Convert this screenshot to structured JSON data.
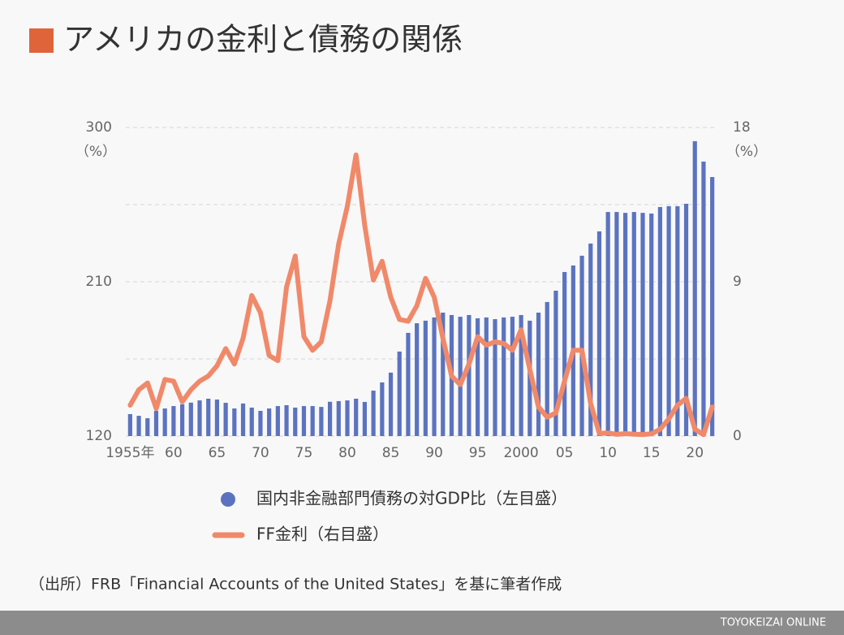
{
  "title": "アメリカの金利と債務の関係",
  "source": "（出所）FRB「Financial Accounts of the United States」を基に筆者作成",
  "footer": "TOYOKEIZAI ONLINE",
  "chart_data": {
    "type": "combo",
    "ylabel": "（%）",
    "y2label": "（%）",
    "x": [
      1955,
      1956,
      1957,
      1958,
      1959,
      1960,
      1961,
      1962,
      1963,
      1964,
      1965,
      1966,
      1967,
      1968,
      1969,
      1970,
      1971,
      1972,
      1973,
      1974,
      1975,
      1976,
      1977,
      1978,
      1979,
      1980,
      1981,
      1982,
      1983,
      1984,
      1985,
      1986,
      1987,
      1988,
      1989,
      1990,
      1991,
      1992,
      1993,
      1994,
      1995,
      1996,
      1997,
      1998,
      1999,
      2000,
      2001,
      2002,
      2003,
      2004,
      2005,
      2006,
      2007,
      2008,
      2009,
      2010,
      2011,
      2012,
      2013,
      2014,
      2015,
      2016,
      2017,
      2018,
      2019,
      2020,
      2021,
      2022
    ],
    "xlim": [
      1954.5,
      2022.5
    ],
    "xticks": [
      {
        "value": 1955,
        "label": "1955年"
      },
      {
        "value": 1960,
        "label": "60"
      },
      {
        "value": 1965,
        "label": "65"
      },
      {
        "value": 1970,
        "label": "70"
      },
      {
        "value": 1975,
        "label": "75"
      },
      {
        "value": 1980,
        "label": "80"
      },
      {
        "value": 1985,
        "label": "85"
      },
      {
        "value": 1990,
        "label": "90"
      },
      {
        "value": 1995,
        "label": "95"
      },
      {
        "value": 2000,
        "label": "2000"
      },
      {
        "value": 2005,
        "label": "05"
      },
      {
        "value": 2010,
        "label": "10"
      },
      {
        "value": 2015,
        "label": "15"
      },
      {
        "value": 2020,
        "label": "20"
      }
    ],
    "ylim": [
      120,
      300
    ],
    "yticks": [
      120,
      210,
      300
    ],
    "y2lim": [
      0,
      18
    ],
    "y2ticks": [
      0,
      9,
      18
    ],
    "grid": true,
    "series": [
      {
        "name": "国内非金融部門債務の対GDP比（左目盛）",
        "type": "bar",
        "color": "#5b73bf",
        "values": [
          132.8,
          131.8,
          130.4,
          134.7,
          136.1,
          137.5,
          138.5,
          139.5,
          140.8,
          141.8,
          141.3,
          139.4,
          136.1,
          139,
          136.6,
          134.7,
          136.1,
          137.5,
          138,
          136.6,
          137.5,
          137.5,
          137,
          140,
          140.4,
          140.8,
          141.8,
          139.9,
          146.5,
          151.3,
          157,
          169.3,
          180.2,
          185.8,
          187.3,
          189.2,
          192,
          190.6,
          189.6,
          190.6,
          188.7,
          189.2,
          188.2,
          189.2,
          189.6,
          190.6,
          187.3,
          192,
          198.2,
          204.8,
          215.7,
          219.5,
          225.2,
          232.3,
          239.4,
          250.7,
          250.7,
          250.2,
          250.7,
          250.2,
          249.8,
          253.6,
          254.1,
          254.1,
          255.5,
          292,
          280.1,
          271.1
        ]
      },
      {
        "name": "FF金利（右目盛）",
        "type": "line",
        "axis": "y2",
        "color": "#f0896a",
        "values": [
          1.8,
          2.7,
          3.1,
          1.6,
          3.3,
          3.2,
          2.0,
          2.7,
          3.2,
          3.5,
          4.1,
          5.1,
          4.2,
          5.7,
          8.2,
          7.2,
          4.7,
          4.4,
          8.7,
          10.5,
          5.8,
          5.0,
          5.5,
          7.9,
          11.2,
          13.4,
          16.4,
          12.3,
          9.1,
          10.2,
          8.1,
          6.8,
          6.7,
          7.6,
          9.2,
          8.1,
          5.7,
          3.5,
          3.0,
          4.2,
          5.8,
          5.3,
          5.5,
          5.4,
          5.0,
          6.2,
          3.9,
          1.7,
          1.1,
          1.35,
          3.2,
          5.0,
          5.0,
          1.9,
          0.16,
          0.18,
          0.1,
          0.14,
          0.11,
          0.09,
          0.13,
          0.4,
          1.0,
          1.8,
          2.2,
          0.4,
          0.08,
          1.7
        ]
      }
    ]
  }
}
